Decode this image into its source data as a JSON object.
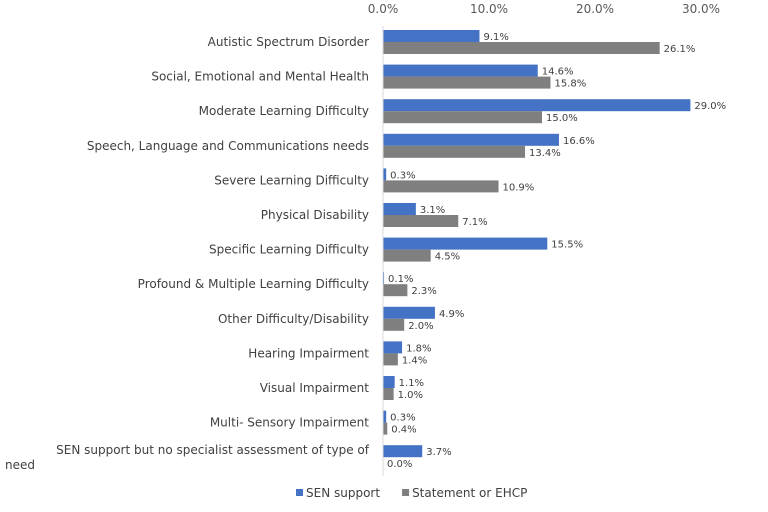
{
  "chart_data": {
    "type": "bar",
    "orientation": "horizontal",
    "categories": [
      "Autistic Spectrum Disorder",
      "Social, Emotional and Mental Health",
      "Moderate Learning Difficulty",
      "Speech, Language and Communications needs",
      "Severe Learning Difficulty",
      "Physical Disability",
      "Specific Learning Difficulty",
      "Profound & Multiple Learning Difficulty",
      "Other Difficulty/Disability",
      "Hearing Impairment",
      "Visual Impairment",
      "Multi- Sensory Impairment",
      "SEN support but no specialist assessment of type of need"
    ],
    "series": [
      {
        "name": "SEN support",
        "color": "#4472C4",
        "values": [
          9.1,
          14.6,
          29.0,
          16.6,
          0.3,
          3.1,
          15.5,
          0.1,
          4.9,
          1.8,
          1.1,
          0.3,
          3.7
        ],
        "labels": [
          "9.1%",
          "14.6%",
          "29.0%",
          "16.6%",
          "0.3%",
          "3.1%",
          "15.5%",
          "0.1%",
          "4.9%",
          "1.8%",
          "1.1%",
          "0.3%",
          "3.7%"
        ]
      },
      {
        "name": "Statement or EHCP",
        "color": "#7F7F7F",
        "values": [
          26.1,
          15.8,
          15.0,
          13.4,
          10.9,
          7.1,
          4.5,
          2.3,
          2.0,
          1.4,
          1.0,
          0.4,
          0.0
        ],
        "labels": [
          "26.1%",
          "15.8%",
          "15.0%",
          "13.4%",
          "10.9%",
          "7.1%",
          "4.5%",
          "2.3%",
          "2.0%",
          "1.4%",
          "1.0%",
          "0.4%",
          "0.0%"
        ]
      }
    ],
    "xlim": [
      0,
      30
    ],
    "x_ticks": [
      0,
      10,
      20,
      30
    ],
    "x_tick_labels": [
      "0.0%",
      "10.0%",
      "20.0%",
      "30.0%"
    ],
    "x_axis_position": "top",
    "grid": false,
    "legend_position": "bottom"
  }
}
